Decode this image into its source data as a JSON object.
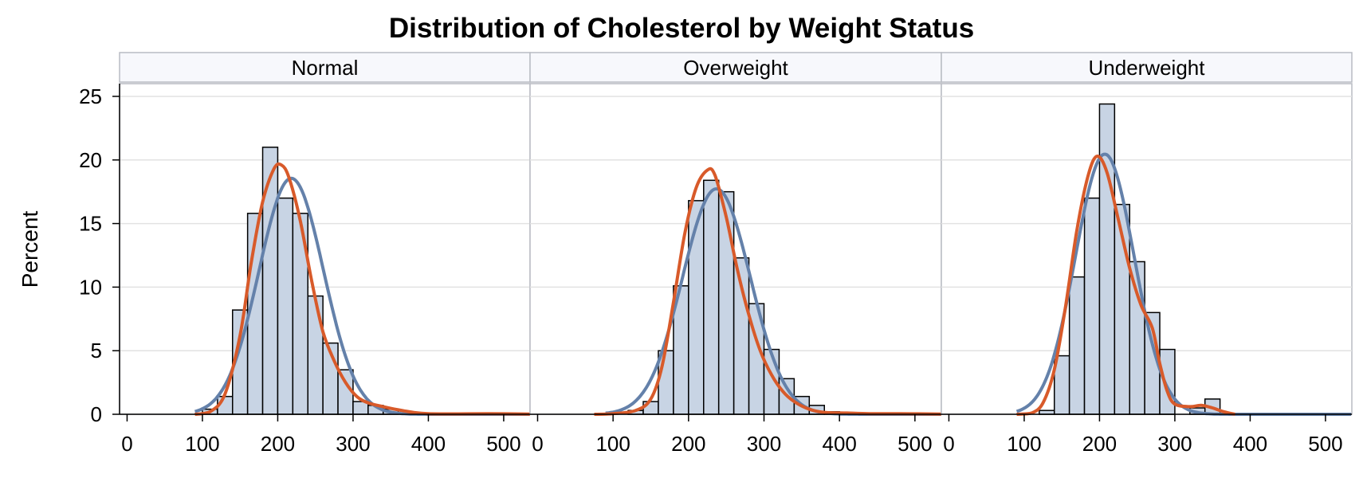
{
  "chart_data": {
    "type": "histogram",
    "title": "Distribution of Cholesterol by Weight Status",
    "ylabel": "Percent",
    "xlabel": "",
    "xlim": [
      -10,
      535
    ],
    "ylim": [
      0,
      26
    ],
    "x_ticks": [
      0,
      100,
      200,
      300,
      400,
      500
    ],
    "y_ticks": [
      0,
      5,
      10,
      15,
      20,
      25
    ],
    "grid": true,
    "bin_width": 20,
    "colors": {
      "bar_fill": "#c8d4e4",
      "bar_edge": "#000000",
      "normal_curve": "#6481aa",
      "kernel_curve": "#d85a2a",
      "panel_header": "#f7f8fc"
    },
    "panels": [
      {
        "name": "Normal",
        "bins": [
          {
            "x": 110,
            "y": 0.4
          },
          {
            "x": 130,
            "y": 1.4
          },
          {
            "x": 150,
            "y": 8.2
          },
          {
            "x": 170,
            "y": 15.8
          },
          {
            "x": 190,
            "y": 21.0
          },
          {
            "x": 210,
            "y": 17.0
          },
          {
            "x": 230,
            "y": 15.8
          },
          {
            "x": 250,
            "y": 9.3
          },
          {
            "x": 270,
            "y": 5.6
          },
          {
            "x": 290,
            "y": 3.5
          },
          {
            "x": 310,
            "y": 1.0
          },
          {
            "x": 330,
            "y": 0.7
          },
          {
            "x": 350,
            "y": 0.4
          }
        ],
        "normal_mean": 218,
        "normal_sd": 43,
        "kernel": [
          [
            90,
            0
          ],
          [
            110,
            0.2
          ],
          [
            130,
            1.6
          ],
          [
            150,
            6.2
          ],
          [
            165,
            12.0
          ],
          [
            180,
            16.7
          ],
          [
            195,
            19.3
          ],
          [
            205,
            19.6
          ],
          [
            215,
            18.6
          ],
          [
            230,
            15.2
          ],
          [
            245,
            10.5
          ],
          [
            260,
            6.5
          ],
          [
            275,
            4.2
          ],
          [
            290,
            2.5
          ],
          [
            305,
            1.4
          ],
          [
            320,
            0.9
          ],
          [
            340,
            0.6
          ],
          [
            360,
            0.35
          ],
          [
            380,
            0.15
          ],
          [
            400,
            0.05
          ],
          [
            440,
            0.03
          ],
          [
            480,
            0.05
          ],
          [
            535,
            0.02
          ]
        ]
      },
      {
        "name": "Overweight",
        "bins": [
          {
            "x": 130,
            "y": 0.3
          },
          {
            "x": 150,
            "y": 1.0
          },
          {
            "x": 170,
            "y": 5.0
          },
          {
            "x": 190,
            "y": 10.1
          },
          {
            "x": 210,
            "y": 16.8
          },
          {
            "x": 230,
            "y": 18.4
          },
          {
            "x": 250,
            "y": 17.5
          },
          {
            "x": 270,
            "y": 12.3
          },
          {
            "x": 290,
            "y": 8.7
          },
          {
            "x": 310,
            "y": 5.1
          },
          {
            "x": 330,
            "y": 2.8
          },
          {
            "x": 350,
            "y": 1.4
          },
          {
            "x": 370,
            "y": 0.7
          },
          {
            "x": 390,
            "y": 0.2
          }
        ],
        "normal_mean": 237,
        "normal_sd": 45,
        "kernel": [
          [
            75,
            0
          ],
          [
            100,
            0.05
          ],
          [
            130,
            0.3
          ],
          [
            150,
            1.2
          ],
          [
            165,
            3.8
          ],
          [
            180,
            8.8
          ],
          [
            195,
            14.2
          ],
          [
            210,
            17.8
          ],
          [
            225,
            19.2
          ],
          [
            235,
            18.8
          ],
          [
            250,
            15.5
          ],
          [
            265,
            11.3
          ],
          [
            280,
            7.8
          ],
          [
            295,
            5.0
          ],
          [
            310,
            3.1
          ],
          [
            325,
            1.8
          ],
          [
            340,
            1.0
          ],
          [
            360,
            0.4
          ],
          [
            380,
            0.15
          ],
          [
            410,
            0.1
          ],
          [
            440,
            0.05
          ],
          [
            480,
            0.05
          ],
          [
            535,
            0.02
          ]
        ]
      },
      {
        "name": "Underweight",
        "bins": [
          {
            "x": 130,
            "y": 0.3
          },
          {
            "x": 150,
            "y": 4.6
          },
          {
            "x": 170,
            "y": 10.8
          },
          {
            "x": 190,
            "y": 17.0
          },
          {
            "x": 210,
            "y": 24.4
          },
          {
            "x": 230,
            "y": 16.5
          },
          {
            "x": 250,
            "y": 12.0
          },
          {
            "x": 270,
            "y": 8.0
          },
          {
            "x": 290,
            "y": 5.1
          },
          {
            "x": 330,
            "y": 0.5
          },
          {
            "x": 350,
            "y": 1.2
          }
        ],
        "normal_mean": 207,
        "normal_sd": 39,
        "kernel": [
          [
            90,
            0
          ],
          [
            110,
            0.1
          ],
          [
            125,
            0.9
          ],
          [
            140,
            3.5
          ],
          [
            155,
            8.5
          ],
          [
            170,
            14.5
          ],
          [
            185,
            18.8
          ],
          [
            197,
            20.3
          ],
          [
            210,
            19.0
          ],
          [
            225,
            15.3
          ],
          [
            240,
            11.5
          ],
          [
            255,
            8.6
          ],
          [
            270,
            6.8
          ],
          [
            280,
            4.0
          ],
          [
            290,
            1.8
          ],
          [
            300,
            0.8
          ],
          [
            320,
            0.6
          ],
          [
            335,
            0.7
          ],
          [
            350,
            0.5
          ],
          [
            365,
            0.2
          ],
          [
            380,
            0
          ]
        ]
      }
    ]
  }
}
